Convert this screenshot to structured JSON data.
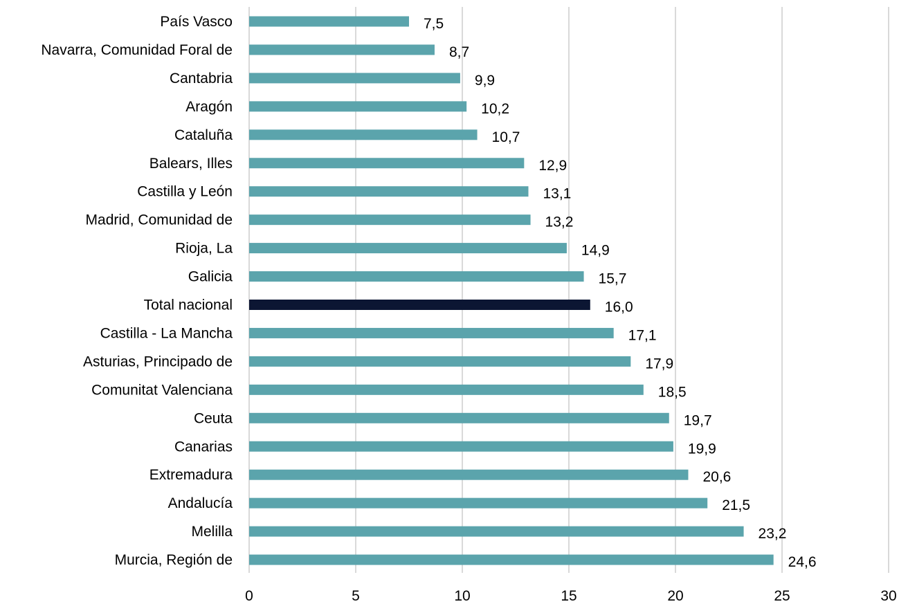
{
  "chart_data": {
    "type": "bar",
    "orientation": "horizontal",
    "categories": [
      "País Vasco",
      "Navarra, Comunidad Foral de",
      "Cantabria",
      "Aragón",
      "Cataluña",
      "Balears, Illes",
      "Castilla y León",
      "Madrid, Comunidad de",
      "Rioja, La",
      "Galicia",
      "Total nacional",
      "Castilla - La Mancha",
      "Asturias, Principado de",
      "Comunitat Valenciana",
      "Ceuta",
      "Canarias",
      "Extremadura",
      "Andalucía",
      "Melilla",
      "Murcia, Región de"
    ],
    "values": [
      7.5,
      8.7,
      9.9,
      10.2,
      10.7,
      12.9,
      13.1,
      13.2,
      14.9,
      15.7,
      16.0,
      17.1,
      17.9,
      18.5,
      19.7,
      19.9,
      20.6,
      21.5,
      23.2,
      24.6
    ],
    "value_labels": [
      "7,5",
      "8,7",
      "9,9",
      "10,2",
      "10,7",
      "12,9",
      "13,1",
      "13,2",
      "14,9",
      "15,7",
      "16,0",
      "17,1",
      "17,9",
      "18,5",
      "19,7",
      "19,9",
      "20,6",
      "21,5",
      "23,2",
      "24,6"
    ],
    "xlim": [
      0,
      30
    ],
    "x_ticks": [
      0,
      5,
      10,
      15,
      20,
      25,
      30
    ],
    "x_tick_labels": [
      "0",
      "5",
      "10",
      "15",
      "20",
      "25",
      "30"
    ],
    "grid": "vertical",
    "legend": "none",
    "colors": {
      "bar": "#5ba4ac",
      "highlight_bar": "#0c1633",
      "grid": "#d9d9d9"
    },
    "highlight_category": "Total nacional"
  }
}
